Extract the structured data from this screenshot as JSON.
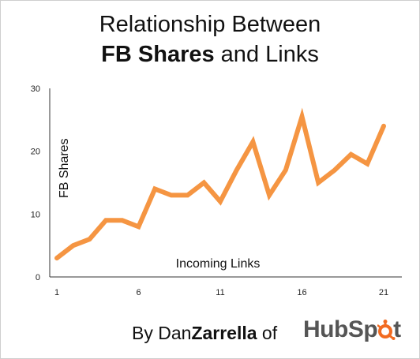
{
  "title": {
    "line1": "Relationship Between",
    "line2_bold": "FB Shares",
    "line2_rest": " and Links"
  },
  "footer": {
    "by": "By Dan",
    "surname": "Zarrella",
    "of": " of",
    "brand_left": "HubSp",
    "brand_right": "t",
    "brand_icon": "sprocket-icon"
  },
  "colors": {
    "line": "#F59542",
    "brand_orange": "#F26B21",
    "brand_gray": "#555555"
  },
  "chart_data": {
    "type": "line",
    "title": "Relationship Between FB Shares and Links",
    "xlabel": "Incoming Links",
    "ylabel": "FB Shares",
    "x": [
      1,
      2,
      3,
      4,
      5,
      6,
      7,
      8,
      9,
      10,
      11,
      12,
      13,
      14,
      15,
      16,
      17,
      18,
      19,
      20,
      21
    ],
    "values": [
      3,
      5,
      6,
      9,
      9,
      8,
      14,
      13,
      13,
      15,
      12,
      17,
      21.5,
      13,
      17,
      25.5,
      15,
      17,
      19.5,
      18,
      24
    ],
    "xticks": [
      "1",
      "6",
      "11",
      "16",
      "21"
    ],
    "yticks": [
      "0",
      "10",
      "20",
      "30"
    ],
    "xlim": [
      1,
      21
    ],
    "ylim": [
      0,
      30
    ],
    "grid": false,
    "legend": "none"
  }
}
